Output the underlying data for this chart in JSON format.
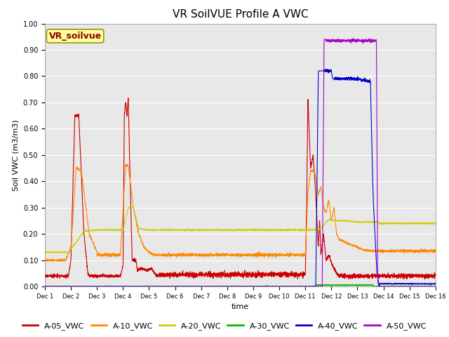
{
  "title": "VR SoilVUE Profile A VWC",
  "ylabel": "Soil VWC (m3/m3)",
  "xlabel": "time",
  "ylim": [
    0.0,
    1.0
  ],
  "yticks": [
    0.0,
    0.1,
    0.2,
    0.3,
    0.4,
    0.5,
    0.6,
    0.7,
    0.8,
    0.9,
    1.0
  ],
  "plot_bg_color": "#e8e8e8",
  "grid_color": "white",
  "series": {
    "A-05_VWC": {
      "color": "#cc0000",
      "lw": 0.8
    },
    "A-10_VWC": {
      "color": "#ff8800",
      "lw": 0.8
    },
    "A-20_VWC": {
      "color": "#cccc00",
      "lw": 0.8
    },
    "A-30_VWC": {
      "color": "#00bb00",
      "lw": 0.8
    },
    "A-40_VWC": {
      "color": "#0000cc",
      "lw": 0.8
    },
    "A-50_VWC": {
      "color": "#aa00cc",
      "lw": 0.8
    }
  },
  "xtick_labels": [
    "Dec 1",
    "Dec 2",
    "Dec 3",
    "Dec 4",
    "Dec 5",
    "Dec 6",
    "Dec 7",
    "Dec 8",
    "Dec 9",
    "Dec 10",
    "Dec 11",
    "Dec 12",
    "Dec 13",
    "Dec 14",
    "Dec 15",
    "Dec 16"
  ],
  "station_label": "VR_soilvue",
  "station_label_color": "#8b0000",
  "station_box_color": "#ffff99",
  "title_fontsize": 11,
  "axis_fontsize": 8,
  "legend_fontsize": 8,
  "tick_fontsize": 7
}
